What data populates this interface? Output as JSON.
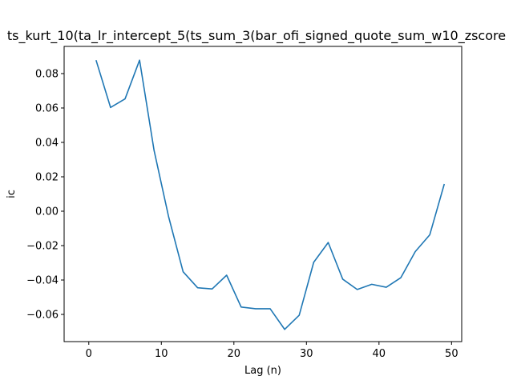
{
  "chart_data": {
    "type": "line",
    "title": "ts_kurt_10(ta_lr_intercept_5(ts_sum_3(bar_ofi_signed_quote_sum_w10_zscore",
    "xlabel": "Lag (n)",
    "ylabel": "ic",
    "xlim": [
      -3.4,
      51.4
    ],
    "ylim": [
      -0.0758,
      0.0958
    ],
    "x_ticks": [
      0,
      10,
      20,
      30,
      40,
      50
    ],
    "y_ticks": [
      -0.06,
      -0.04,
      -0.02,
      0.0,
      0.02,
      0.04,
      0.06,
      0.08
    ],
    "x_tick_labels": [
      "0",
      "10",
      "20",
      "30",
      "40",
      "50"
    ],
    "y_tick_labels": [
      "−0.06",
      "−0.04",
      "−0.02",
      "0.00",
      "0.02",
      "0.04",
      "0.06",
      "0.08"
    ],
    "grid": false,
    "line_color": "#1f77b4",
    "x": [
      1,
      3,
      5,
      7,
      9,
      11,
      13,
      15,
      17,
      19,
      21,
      23,
      25,
      27,
      29,
      31,
      33,
      35,
      37,
      39,
      41,
      43,
      45,
      47,
      49
    ],
    "y": [
      0.0878,
      0.0603,
      0.0653,
      0.0878,
      0.0353,
      -0.0032,
      -0.0352,
      -0.0445,
      -0.0452,
      -0.0372,
      -0.0557,
      -0.0567,
      -0.0567,
      -0.0687,
      -0.0605,
      -0.0297,
      -0.0182,
      -0.0395,
      -0.0455,
      -0.0425,
      -0.0442,
      -0.0387,
      -0.0235,
      -0.0137,
      0.0158
    ]
  }
}
